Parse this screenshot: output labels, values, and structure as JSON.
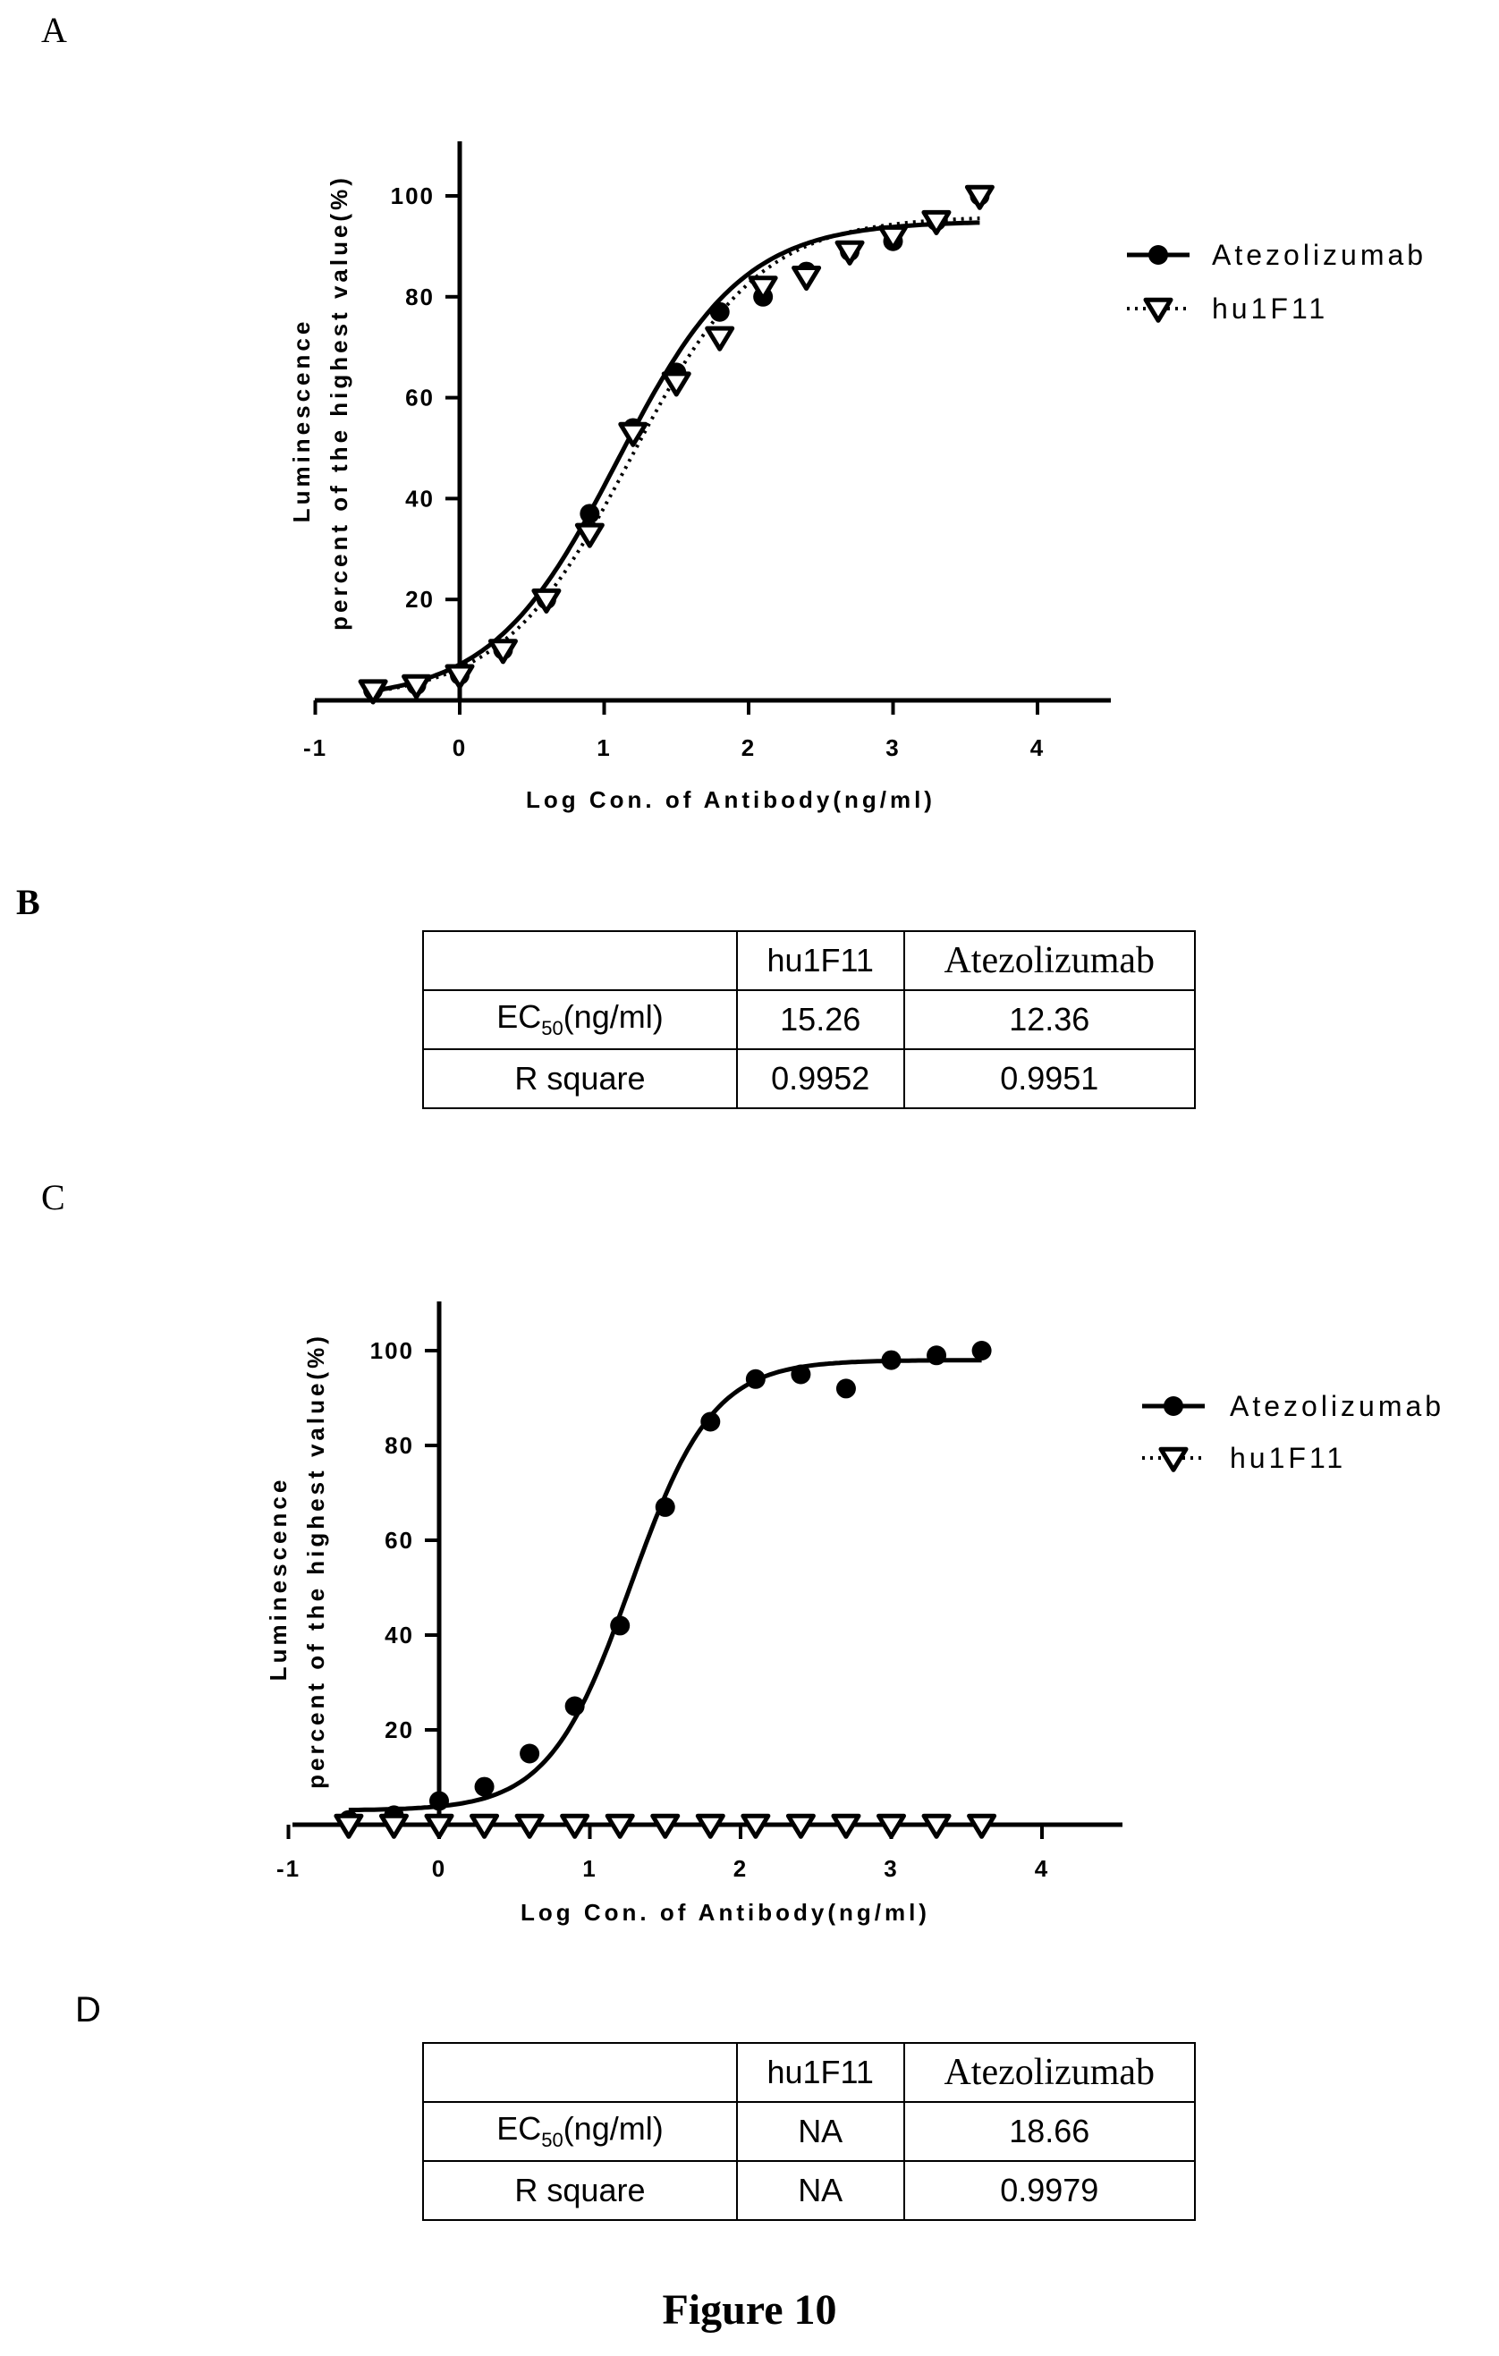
{
  "panels": {
    "a": "A",
    "b": "B",
    "c": "C",
    "d": "D"
  },
  "figure_caption": "Figure 10",
  "chart_data": [
    {
      "type": "line",
      "panel": "A",
      "xlabel": "Log Con. of Antibody(ng/ml)",
      "ylabel_line1": "Luminescence",
      "ylabel_line2": "percent of the highest value(%)",
      "xlim": [
        -1,
        4.5
      ],
      "ylim": [
        0,
        110
      ],
      "xticks": [
        -1,
        0,
        1,
        2,
        3,
        4
      ],
      "yticks": [
        20,
        40,
        60,
        80,
        100
      ],
      "legend_position": "right",
      "series": [
        {
          "name": "Atezolizumab",
          "marker": "circle",
          "line": "solid",
          "x": [
            -0.6,
            -0.3,
            0.0,
            0.3,
            0.6,
            0.9,
            1.2,
            1.5,
            1.8,
            2.1,
            2.4,
            2.7,
            3.0,
            3.3,
            3.6
          ],
          "y": [
            2,
            3,
            5,
            10,
            20,
            37,
            54,
            65,
            77,
            80,
            85,
            89,
            91,
            95,
            100
          ],
          "fit": {
            "bottom": 0,
            "top": 95,
            "logEC50": 1.092,
            "hill": 1.0
          }
        },
        {
          "name": "hu1F11",
          "marker": "triangle-down-open",
          "line": "dotted",
          "x": [
            -0.6,
            -0.3,
            0.0,
            0.3,
            0.6,
            0.9,
            1.2,
            1.5,
            1.8,
            2.1,
            2.4,
            2.7,
            3.0,
            3.3,
            3.6
          ],
          "y": [
            2,
            3,
            5,
            10,
            20,
            33,
            53,
            63,
            72,
            82,
            84,
            89,
            92,
            95,
            100
          ],
          "fit": {
            "bottom": 0,
            "top": 96,
            "logEC50": 1.184,
            "hill": 0.97
          }
        }
      ]
    },
    {
      "type": "line",
      "panel": "C",
      "xlabel": "Log Con. of Antibody(ng/ml)",
      "ylabel_line1": "Luminescence",
      "ylabel_line2": "percent of the highest value(%)",
      "xlim": [
        -1,
        4.5
      ],
      "ylim": [
        0,
        110
      ],
      "xticks": [
        -1,
        0,
        1,
        2,
        3,
        4
      ],
      "yticks": [
        20,
        40,
        60,
        80,
        100
      ],
      "legend_position": "right",
      "series": [
        {
          "name": "Atezolizumab",
          "marker": "circle",
          "line": "solid",
          "x": [
            -0.6,
            -0.3,
            0.0,
            0.3,
            0.6,
            0.9,
            1.2,
            1.5,
            1.8,
            2.1,
            2.4,
            2.7,
            3.0,
            3.3,
            3.6
          ],
          "y": [
            1,
            2,
            5,
            8,
            15,
            25,
            42,
            67,
            85,
            94,
            95,
            92,
            98,
            99,
            100
          ],
          "fit": {
            "bottom": 3,
            "top": 98,
            "logEC50": 1.271,
            "hill": 1.6
          }
        },
        {
          "name": "hu1F11",
          "marker": "triangle-down-open",
          "line": "dotted",
          "x": [
            -0.6,
            -0.3,
            0.0,
            0.3,
            0.6,
            0.9,
            1.2,
            1.5,
            1.8,
            2.1,
            2.4,
            2.7,
            3.0,
            3.3,
            3.6
          ],
          "y": [
            0,
            0,
            0,
            0,
            0,
            0,
            0,
            0,
            0,
            0,
            0,
            0,
            0,
            0,
            0
          ],
          "fit": null
        }
      ]
    }
  ],
  "tables": {
    "b": {
      "header": [
        "",
        "hu1F11",
        "Atezolizumab"
      ],
      "rows": [
        {
          "label_main": "EC",
          "label_sub": "50",
          "label_unit": "(ng/ml)",
          "values": [
            "15.26",
            "12.36"
          ]
        },
        {
          "label_main": "R square",
          "values": [
            "0.9952",
            "0.9951"
          ]
        }
      ]
    },
    "d": {
      "header": [
        "",
        "hu1F11",
        "Atezolizumab"
      ],
      "rows": [
        {
          "label_main": "EC",
          "label_sub": "50",
          "label_unit": "(ng/ml)",
          "values": [
            "NA",
            "18.66"
          ]
        },
        {
          "label_main": "R square",
          "values": [
            "NA",
            "0.9979"
          ]
        }
      ]
    }
  }
}
